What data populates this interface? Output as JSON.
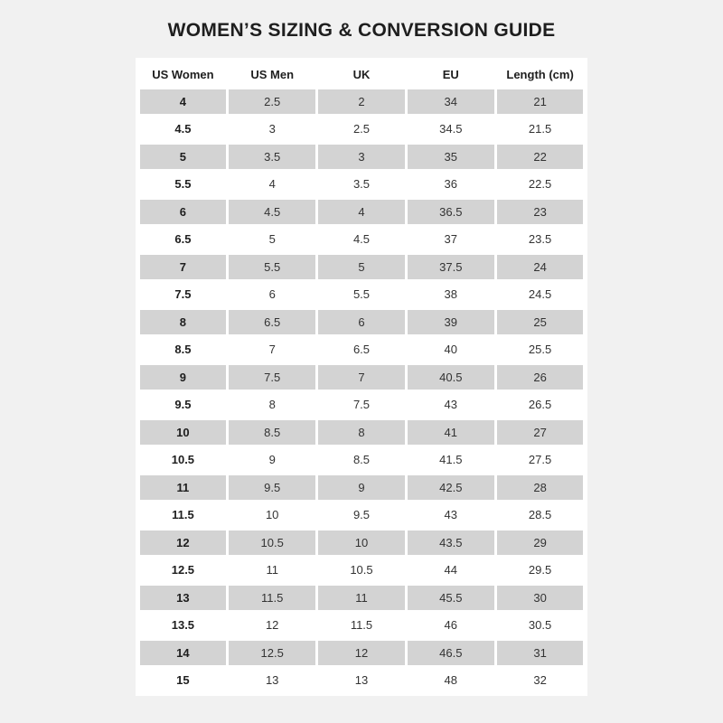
{
  "title": "WOMEN’S SIZING & CONVERSION GUIDE",
  "colors": {
    "background": "#f1f1f1",
    "shaded_row": "#d3d3d3",
    "panel": "#ffffff"
  },
  "table": {
    "headers": [
      "US Women",
      "US Men",
      "UK",
      "EU",
      "Length (cm)"
    ],
    "rows": [
      [
        "4",
        "2.5",
        "2",
        "34",
        "21"
      ],
      [
        "4.5",
        "3",
        "2.5",
        "34.5",
        "21.5"
      ],
      [
        "5",
        "3.5",
        "3",
        "35",
        "22"
      ],
      [
        "5.5",
        "4",
        "3.5",
        "36",
        "22.5"
      ],
      [
        "6",
        "4.5",
        "4",
        "36.5",
        "23"
      ],
      [
        "6.5",
        "5",
        "4.5",
        "37",
        "23.5"
      ],
      [
        "7",
        "5.5",
        "5",
        "37.5",
        "24"
      ],
      [
        "7.5",
        "6",
        "5.5",
        "38",
        "24.5"
      ],
      [
        "8",
        "6.5",
        "6",
        "39",
        "25"
      ],
      [
        "8.5",
        "7",
        "6.5",
        "40",
        "25.5"
      ],
      [
        "9",
        "7.5",
        "7",
        "40.5",
        "26"
      ],
      [
        "9.5",
        "8",
        "7.5",
        "43",
        "26.5"
      ],
      [
        "10",
        "8.5",
        "8",
        "41",
        "27"
      ],
      [
        "10.5",
        "9",
        "8.5",
        "41.5",
        "27.5"
      ],
      [
        "11",
        "9.5",
        "9",
        "42.5",
        "28"
      ],
      [
        "11.5",
        "10",
        "9.5",
        "43",
        "28.5"
      ],
      [
        "12",
        "10.5",
        "10",
        "43.5",
        "29"
      ],
      [
        "12.5",
        "11",
        "10.5",
        "44",
        "29.5"
      ],
      [
        "13",
        "11.5",
        "11",
        "45.5",
        "30"
      ],
      [
        "13.5",
        "12",
        "11.5",
        "46",
        "30.5"
      ],
      [
        "14",
        "12.5",
        "12",
        "46.5",
        "31"
      ],
      [
        "15",
        "13",
        "13",
        "48",
        "32"
      ]
    ]
  }
}
